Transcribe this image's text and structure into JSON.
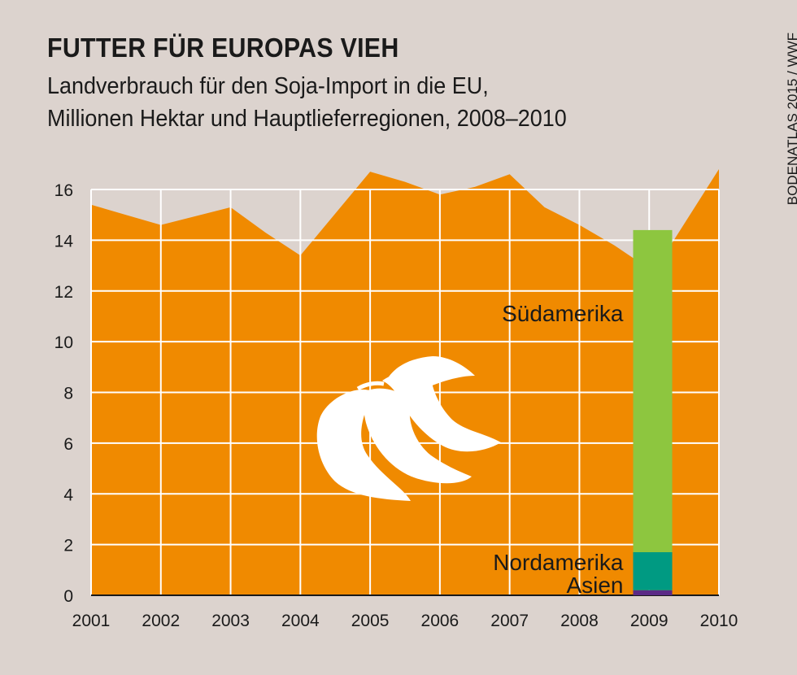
{
  "header": {
    "title": "FUTTER FÜR EUROPAS VIEH",
    "subtitle_line1": "Landverbrauch für den Soja-Import in die EU,",
    "subtitle_line2": "Millionen Hektar und Hauptlieferregionen, 2008–2010",
    "source": "BODENATLAS 2015 / WWF"
  },
  "colors": {
    "background": "#dcd3ce",
    "area": "#f08a00",
    "grid": "#ffffff",
    "suedamerika": "#8dc63f",
    "nordamerika": "#009a82",
    "asien": "#5b2a86",
    "icon": "#ffffff"
  },
  "icon": "soybean-pods-icon",
  "chart_data": {
    "type": "area",
    "x": [
      2001,
      2001.5,
      2002,
      2003,
      2003.5,
      2004,
      2005,
      2005.5,
      2006,
      2006.5,
      2007,
      2007.5,
      2008,
      2008.5,
      2008.77,
      2009.33,
      2010
    ],
    "y": [
      15.4,
      15.0,
      14.6,
      15.3,
      14.3,
      13.4,
      16.7,
      16.3,
      15.8,
      16.1,
      16.6,
      15.3,
      14.6,
      13.8,
      13.3,
      13.9,
      16.8
    ],
    "xlim": [
      2001,
      2010
    ],
    "ylim": [
      0,
      16
    ],
    "x_ticks": [
      2001,
      2002,
      2003,
      2004,
      2005,
      2006,
      2007,
      2008,
      2009,
      2010
    ],
    "y_ticks": [
      0,
      2,
      4,
      6,
      8,
      10,
      12,
      14,
      16
    ],
    "grid": true,
    "stacked_bar": {
      "category": "2009",
      "segments": [
        {
          "name": "Asien",
          "value": 0.2
        },
        {
          "name": "Nordamerika",
          "value": 1.5
        },
        {
          "name": "Südamerika",
          "value": 12.7
        }
      ]
    }
  }
}
